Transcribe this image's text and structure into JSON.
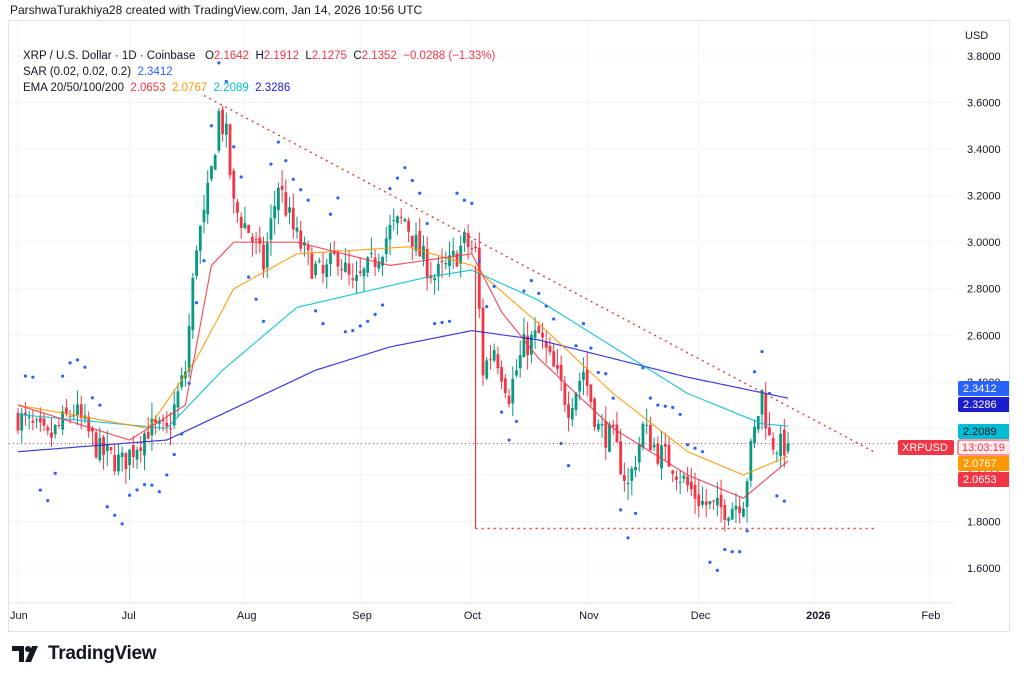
{
  "header": {
    "attribution": "ParshwaTurakhiya28 created with TradingView.com, Jan 14, 2026 10:56 UTC"
  },
  "legend": {
    "symbol": "XRP / U.S. Dollar · 1D · Coinbase",
    "ohlc": {
      "o_label": "O",
      "o": "2.1642",
      "h_label": "H",
      "h": "2.1912",
      "l_label": "L",
      "l": "2.1275",
      "c_label": "C",
      "c": "2.1352",
      "change": "−0.0288 (−1.33%)"
    },
    "sar_label": "SAR (0.02, 0.02, 0.2)",
    "sar_value": "2.3412",
    "ema_label": "EMA 20/50/100/200",
    "ema_values": [
      "2.0653",
      "2.0767",
      "2.2089",
      "2.3286"
    ]
  },
  "footer": {
    "brand": "TradingView"
  },
  "colors": {
    "up": "#089981",
    "down": "#f23645",
    "ema20": "#f23645",
    "ema50": "#ff9800",
    "ema100": "#00bcd4",
    "ema200": "#1c1ccf",
    "sar": "#2962ff",
    "trend": "#e53935",
    "grid": "#f0f3fa"
  },
  "chart_data": {
    "type": "candlestick",
    "currency_label": "USD",
    "y_ticks": [
      "3.8000",
      "3.6000",
      "3.4000",
      "3.2000",
      "3.0000",
      "2.8000",
      "2.6000",
      "2.4000",
      "2.2000",
      "2.0000",
      "1.8000",
      "1.6000"
    ],
    "x_ticks": [
      "Jun",
      "Jul",
      "Aug",
      "Sep",
      "Oct",
      "Nov",
      "Dec",
      "2026",
      "Feb"
    ],
    "ylim": [
      1.45,
      3.95
    ],
    "price_badges": [
      {
        "label": "",
        "value": "2.3412",
        "color": "#2962ff"
      },
      {
        "label": "",
        "value": "2.3286",
        "color": "#1c1ccf"
      },
      {
        "label": "",
        "value": "2.2089",
        "color": "#00bcd4"
      },
      {
        "label": "XRPUSD",
        "value": "13:03:19",
        "color": "#f23645"
      },
      {
        "label": "",
        "value": "2.0767",
        "color": "#ff9800"
      },
      {
        "label": "",
        "value": "2.0653",
        "color": "#f23645"
      }
    ],
    "last_price": 2.1352,
    "close_anchors": [
      [
        0,
        2.25
      ],
      [
        8,
        2.15
      ],
      [
        15,
        2.28
      ],
      [
        22,
        2.1
      ],
      [
        28,
        2.05
      ],
      [
        35,
        2.2
      ],
      [
        40,
        2.18
      ],
      [
        45,
        2.45
      ],
      [
        48,
        3.0
      ],
      [
        50,
        3.1
      ],
      [
        52,
        3.3
      ],
      [
        54,
        3.55
      ],
      [
        56,
        3.45
      ],
      [
        58,
        3.15
      ],
      [
        62,
        3.05
      ],
      [
        66,
        2.9
      ],
      [
        70,
        3.25
      ],
      [
        74,
        3.05
      ],
      [
        78,
        2.92
      ],
      [
        82,
        2.85
      ],
      [
        86,
        2.95
      ],
      [
        90,
        2.8
      ],
      [
        95,
        2.9
      ],
      [
        100,
        3.05
      ],
      [
        104,
        3.1
      ],
      [
        108,
        2.95
      ],
      [
        112,
        2.85
      ],
      [
        116,
        2.9
      ],
      [
        120,
        3.0
      ],
      [
        123,
        2.95
      ],
      [
        125,
        2.45
      ],
      [
        128,
        2.55
      ],
      [
        132,
        2.35
      ],
      [
        136,
        2.55
      ],
      [
        140,
        2.6
      ],
      [
        144,
        2.45
      ],
      [
        148,
        2.3
      ],
      [
        152,
        2.45
      ],
      [
        156,
        2.2
      ],
      [
        160,
        2.15
      ],
      [
        164,
        1.95
      ],
      [
        168,
        2.2
      ],
      [
        172,
        2.1
      ],
      [
        176,
        2.05
      ],
      [
        180,
        1.95
      ],
      [
        184,
        1.88
      ],
      [
        188,
        1.85
      ],
      [
        192,
        1.87
      ],
      [
        195,
        1.9
      ],
      [
        197,
        2.1
      ],
      [
        200,
        2.35
      ],
      [
        202,
        2.15
      ],
      [
        205,
        2.12
      ],
      [
        207,
        2.1351
      ]
    ],
    "ema20_anchors": [
      [
        0,
        2.3
      ],
      [
        30,
        2.15
      ],
      [
        45,
        2.3
      ],
      [
        52,
        2.9
      ],
      [
        58,
        3.0
      ],
      [
        75,
        3.0
      ],
      [
        100,
        2.9
      ],
      [
        122,
        2.95
      ],
      [
        130,
        2.7
      ],
      [
        140,
        2.5
      ],
      [
        160,
        2.2
      ],
      [
        180,
        2.0
      ],
      [
        195,
        1.9
      ],
      [
        207,
        2.06
      ]
    ],
    "ema50_anchors": [
      [
        0,
        2.3
      ],
      [
        35,
        2.2
      ],
      [
        48,
        2.5
      ],
      [
        58,
        2.8
      ],
      [
        75,
        2.95
      ],
      [
        105,
        2.98
      ],
      [
        122,
        2.9
      ],
      [
        140,
        2.65
      ],
      [
        160,
        2.35
      ],
      [
        180,
        2.1
      ],
      [
        195,
        2.0
      ],
      [
        207,
        2.08
      ]
    ],
    "ema100_anchors": [
      [
        0,
        2.26
      ],
      [
        40,
        2.2
      ],
      [
        55,
        2.45
      ],
      [
        75,
        2.72
      ],
      [
        110,
        2.85
      ],
      [
        122,
        2.88
      ],
      [
        140,
        2.75
      ],
      [
        160,
        2.55
      ],
      [
        180,
        2.35
      ],
      [
        200,
        2.22
      ],
      [
        207,
        2.21
      ]
    ],
    "ema200_anchors": [
      [
        0,
        2.1
      ],
      [
        40,
        2.15
      ],
      [
        60,
        2.3
      ],
      [
        80,
        2.45
      ],
      [
        100,
        2.55
      ],
      [
        122,
        2.62
      ],
      [
        140,
        2.58
      ],
      [
        160,
        2.5
      ],
      [
        180,
        2.42
      ],
      [
        207,
        2.33
      ]
    ],
    "trendline": {
      "from": [
        50,
        3.63
      ],
      "to": [
        230,
        2.1
      ]
    },
    "support_line": {
      "from": [
        123,
        1.77
      ],
      "to": [
        230,
        1.77
      ]
    },
    "oct_drop": {
      "x": 123,
      "from": 2.9,
      "to": 1.77
    },
    "days_total": 240
  }
}
